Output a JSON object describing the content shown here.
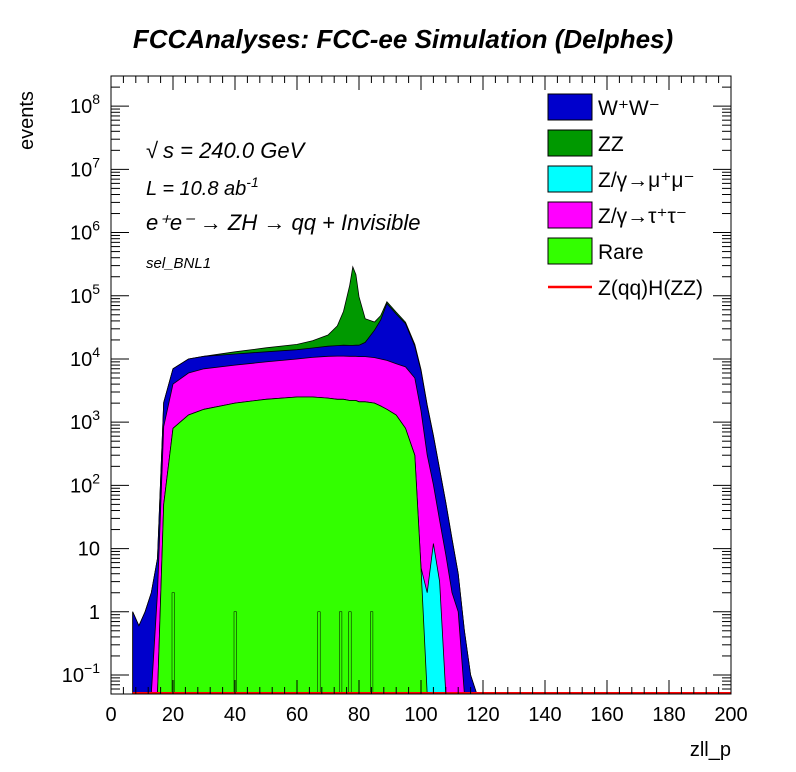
{
  "chart_data": {
    "type": "area",
    "title": "FCCAnalyses: FCC-ee Simulation (Delphes)",
    "xlabel": "zll_p",
    "ylabel": "events",
    "xlim": [
      0,
      200
    ],
    "ylim": [
      0.05,
      300000000
    ],
    "yscale": "log",
    "x_ticks": [
      "0",
      "20",
      "40",
      "60",
      "80",
      "100",
      "120",
      "140",
      "160",
      "180",
      "200"
    ],
    "y_ticks": [
      {
        "base": "10",
        "exp": "−1",
        "value": 0.1
      },
      {
        "base": "1",
        "exp": "",
        "value": 1
      },
      {
        "base": "10",
        "exp": "",
        "value": 10
      },
      {
        "base": "10",
        "exp": "2",
        "value": 100
      },
      {
        "base": "10",
        "exp": "3",
        "value": 1000
      },
      {
        "base": "10",
        "exp": "4",
        "value": 10000
      },
      {
        "base": "10",
        "exp": "5",
        "value": 100000
      },
      {
        "base": "10",
        "exp": "6",
        "value": 1000000
      },
      {
        "base": "10",
        "exp": "7",
        "value": 10000000
      },
      {
        "base": "10",
        "exp": "8",
        "value": 100000000
      }
    ],
    "annotations": {
      "sqrt_s": "s = 240.0 GeV",
      "lumi": "L = 10.8 ab",
      "lumi_exp": "-1",
      "process": "e⁺e⁻ → ZH → qq + Invisible",
      "selection": "sel_BNL1"
    },
    "legend_position": "top-right",
    "legend": [
      {
        "label": "W⁺W⁻",
        "color": "#0000cc",
        "kind": "fill"
      },
      {
        "label": "ZZ",
        "color": "#009900",
        "kind": "fill"
      },
      {
        "label": "Z/γ→μ⁺μ⁻",
        "color": "#00ffff",
        "kind": "fill"
      },
      {
        "label": "Z/γ→τ⁺τ⁻",
        "color": "#ff00ff",
        "kind": "fill"
      },
      {
        "label": "Rare",
        "color": "#33ff00",
        "kind": "fill"
      },
      {
        "label": "Z(qq)H(ZZ)",
        "color": "#ff0000",
        "kind": "line"
      }
    ],
    "stack_order_bottom_to_top": [
      "Rare",
      "Z/γ→μ⁺μ⁻",
      "Z/γ→τ⁺τ⁻",
      "W⁺W⁻",
      "ZZ"
    ],
    "x": [
      7,
      9,
      11,
      13,
      15,
      17,
      20,
      25,
      30,
      40,
      50,
      60,
      65,
      70,
      73,
      75,
      77,
      78,
      79,
      80,
      82,
      85,
      87,
      89,
      92,
      95,
      98,
      100,
      102,
      104,
      106,
      108,
      110,
      112,
      114,
      116,
      118,
      120
    ],
    "series": [
      {
        "name": "Rare",
        "color": "#33ff00",
        "values": [
          0,
          0,
          0,
          0,
          0,
          50,
          800,
          1300,
          1600,
          2000,
          2300,
          2500,
          2500,
          2400,
          2300,
          2300,
          2200,
          2200,
          2200,
          2100,
          2100,
          2000,
          1800,
          1600,
          1300,
          800,
          300,
          5,
          0,
          0,
          0,
          0,
          0,
          0,
          0,
          0,
          0,
          0
        ]
      },
      {
        "name": "Z/γ→μ⁺μ⁻",
        "color": "#00ffff",
        "values": [
          0,
          0,
          0,
          0,
          0,
          0,
          0,
          0,
          0,
          0,
          0,
          0,
          0,
          0,
          0,
          0,
          0,
          0,
          0,
          0,
          0,
          0,
          0,
          0,
          0,
          0,
          0,
          0,
          2,
          12,
          3,
          0,
          0,
          0,
          0,
          0,
          0,
          0
        ]
      },
      {
        "name": "Z/γ→τ⁺τ⁻",
        "color": "#ff00ff",
        "values": [
          0,
          0,
          0,
          0,
          2,
          800,
          3200,
          4700,
          5400,
          6000,
          6700,
          7500,
          8100,
          8600,
          8800,
          8800,
          8800,
          8800,
          8800,
          8800,
          8800,
          8500,
          8200,
          7900,
          7100,
          6700,
          4700,
          1500,
          300,
          90,
          25,
          8,
          2,
          1,
          0,
          0,
          0,
          0
        ]
      },
      {
        "name": "W⁺W⁻",
        "color": "#0000cc",
        "values": [
          1,
          0.6,
          1,
          2,
          5,
          1200,
          3000,
          4000,
          4000,
          4000,
          4000,
          4000,
          4300,
          4900,
          5200,
          5400,
          5400,
          5400,
          5500,
          5600,
          7400,
          18000,
          31500,
          66000,
          43000,
          28600,
          11000,
          5000,
          1500,
          500,
          150,
          45,
          12,
          3,
          0.5,
          0.1,
          0,
          0
        ]
      },
      {
        "name": "ZZ",
        "color": "#009900",
        "values": [
          0,
          0,
          0,
          0,
          0,
          0,
          0,
          0,
          0,
          1000,
          2000,
          3000,
          4500,
          8000,
          17000,
          40000,
          130000,
          270000,
          200000,
          80000,
          25000,
          10000,
          7000,
          5000,
          3500,
          2000,
          1000,
          300,
          80,
          20,
          5,
          1,
          0.5,
          0,
          0,
          0,
          0,
          0
        ]
      },
      {
        "name": "Z(qq)H(ZZ)",
        "color": "#ff0000",
        "values": [
          0.05,
          0.05,
          0.05,
          0.05,
          0.05,
          0.05,
          0.05,
          0.05,
          0.05,
          0.05,
          0.05,
          0.05,
          0.05,
          0.05,
          0.05,
          0.05,
          0.05,
          0.05,
          0.05,
          0.05,
          0.05,
          0.05,
          0.05,
          0.05,
          0.05,
          0.05,
          0.05,
          0.05,
          0.05,
          0.05,
          0.05,
          0.05,
          0.05,
          0.05,
          0.05,
          0.05,
          0.05,
          0.05
        ]
      }
    ],
    "rare_spikes": [
      {
        "x": 20,
        "y": 2
      },
      {
        "x": 40,
        "y": 1
      },
      {
        "x": 67,
        "y": 1
      },
      {
        "x": 74,
        "y": 1
      },
      {
        "x": 77,
        "y": 1
      },
      {
        "x": 84,
        "y": 1
      }
    ]
  }
}
